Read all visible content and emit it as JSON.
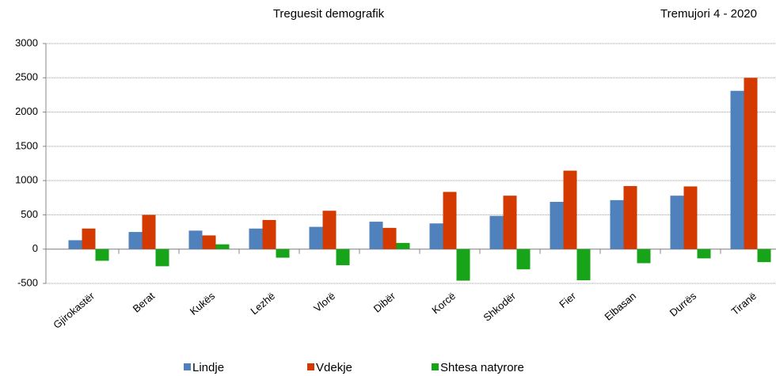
{
  "chart_data": {
    "type": "bar",
    "title": "Treguesit demografik",
    "subtitle": "Tremujori 4 - 2020",
    "categories": [
      "Gjirokastër",
      "Berat",
      "Kukës",
      "Lezhë",
      "Vlorë",
      "Dibër",
      "Korcë",
      "Shkodër",
      "Fier",
      "Elbasan",
      "Durrës",
      "Tiranë"
    ],
    "series": [
      {
        "name": "Lindje",
        "color": "#4f81bd",
        "values": [
          130,
          250,
          270,
          300,
          325,
          400,
          375,
          485,
          690,
          715,
          780,
          2310
        ]
      },
      {
        "name": "Vdekje",
        "color": "#d43900",
        "values": [
          300,
          500,
          200,
          425,
          560,
          310,
          835,
          780,
          1145,
          920,
          915,
          2500
        ]
      },
      {
        "name": "Shtesa natyrore",
        "color": "#18a418",
        "values": [
          -170,
          -250,
          70,
          -125,
          -235,
          90,
          -460,
          -295,
          -455,
          -205,
          -135,
          -190
        ]
      }
    ],
    "ylim": [
      -500,
      3000
    ],
    "yticks": [
      -500,
      0,
      500,
      1000,
      1500,
      2000,
      2500,
      3000
    ],
    "grid": true
  }
}
